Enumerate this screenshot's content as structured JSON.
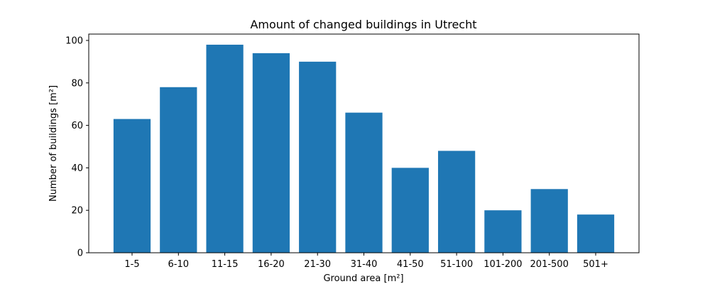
{
  "chart_data": {
    "type": "bar",
    "title": "Amount of changed buildings in Utrecht",
    "xlabel": "Ground area [m²]",
    "ylabel": "Number of buildings [m²]",
    "categories": [
      "1-5",
      "6-10",
      "11-15",
      "16-20",
      "21-30",
      "31-40",
      "41-50",
      "51-100",
      "101-200",
      "201-500",
      "501+"
    ],
    "values": [
      63,
      78,
      98,
      94,
      90,
      66,
      40,
      48,
      20,
      30,
      18
    ],
    "ylim": [
      0,
      103
    ],
    "yticks": [
      0,
      20,
      40,
      60,
      80,
      100
    ],
    "bar_color": "#1f77b4",
    "grid": false,
    "legend": "none"
  }
}
